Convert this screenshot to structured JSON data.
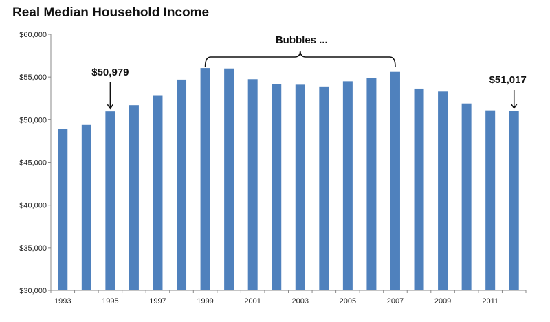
{
  "chart_data": {
    "type": "bar",
    "title": "Real Median Household Income",
    "xlabel": "",
    "ylabel": "",
    "ylim": [
      30000,
      60000
    ],
    "y_ticks": [
      30000,
      35000,
      40000,
      45000,
      50000,
      55000,
      60000
    ],
    "y_tick_labels": [
      "$30,000",
      "$35,000",
      "$40,000",
      "$45,000",
      "$50,000",
      "$55,000",
      "$60,000"
    ],
    "categories": [
      "1993",
      "1994",
      "1995",
      "1996",
      "1997",
      "1998",
      "1999",
      "2000",
      "2001",
      "2002",
      "2003",
      "2004",
      "2005",
      "2006",
      "2007",
      "2008",
      "2009",
      "2010",
      "2011",
      "2012"
    ],
    "x_tick_labels": [
      "1993",
      "1995",
      "1997",
      "1999",
      "2001",
      "2003",
      "2005",
      "2007",
      "2009",
      "2011"
    ],
    "values": [
      48900,
      49400,
      50979,
      51700,
      52800,
      54700,
      56050,
      56000,
      54750,
      54200,
      54100,
      53900,
      54500,
      54900,
      55600,
      53650,
      53300,
      51900,
      51100,
      51017
    ],
    "bar_color": "#4f81bd",
    "grid": false,
    "legend": "none",
    "annotations": [
      {
        "text": "$50,979",
        "category": "1995"
      },
      {
        "text": "$51,017",
        "category": "2012"
      },
      {
        "text": "Bubbles ...",
        "from": "1999",
        "to": "2007"
      }
    ]
  }
}
